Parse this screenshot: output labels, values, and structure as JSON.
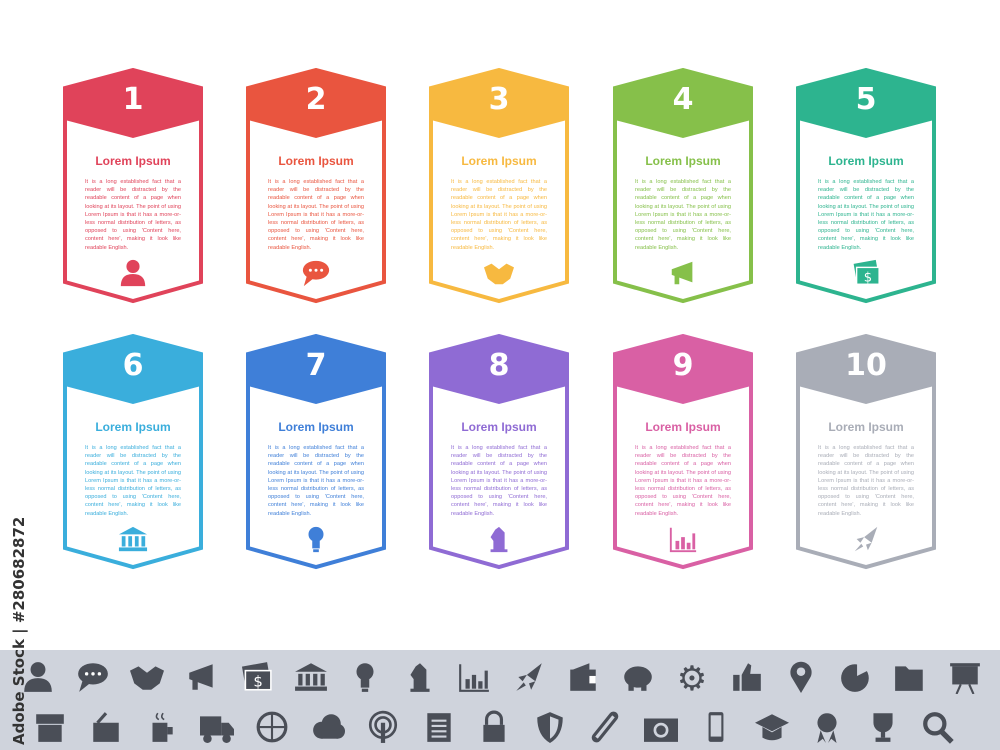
{
  "cards": [
    {
      "number": "1",
      "title": "Lorem Ipsum",
      "color": "#e0435a",
      "icon": "person-icon"
    },
    {
      "number": "2",
      "title": "Lorem Ipsum",
      "color": "#e9553f",
      "icon": "chat-bubble-icon"
    },
    {
      "number": "3",
      "title": "Lorem Ipsum",
      "color": "#f7b940",
      "icon": "handshake-icon"
    },
    {
      "number": "4",
      "title": "Lorem Ipsum",
      "color": "#86c04a",
      "icon": "megaphone-icon"
    },
    {
      "number": "5",
      "title": "Lorem Ipsum",
      "color": "#2db48f",
      "icon": "money-icon"
    },
    {
      "number": "6",
      "title": "Lorem Ipsum",
      "color": "#3aaedc",
      "icon": "bank-icon"
    },
    {
      "number": "7",
      "title": "Lorem Ipsum",
      "color": "#3f7fd8",
      "icon": "lightbulb-icon"
    },
    {
      "number": "8",
      "title": "Lorem Ipsum",
      "color": "#8f6bd4",
      "icon": "chess-knight-icon"
    },
    {
      "number": "9",
      "title": "Lorem Ipsum",
      "color": "#d960a4",
      "icon": "bar-chart-icon"
    },
    {
      "number": "10",
      "title": "Lorem Ipsum",
      "color": "#a9adb7",
      "icon": "rocket-icon"
    }
  ],
  "body_text": "It is a long established fact that a reader will be distracted by the readable content of a page when looking at its layout. The point of using Lorem Ipsum is that it has a more-or-less normal distribution of letters, as opposed to using 'Content here, content here', making it look like readable English.",
  "icon_bar": {
    "color": "#4a4e57",
    "background": "#cfd3dc",
    "row1": [
      "person-icon",
      "chat-bubble-icon",
      "handshake-icon",
      "megaphone-icon",
      "money-icon",
      "bank-icon",
      "lightbulb-icon",
      "chess-knight-icon",
      "bar-chart-icon",
      "rocket-icon",
      "wallet-icon",
      "piggy-bank-icon",
      "gear-icon",
      "thumbs-up-icon",
      "location-pin-icon",
      "pie-chart-icon",
      "folder-icon",
      "presentation-board-icon"
    ],
    "row2": [
      "shop-icon",
      "basket-icon",
      "coffee-icon",
      "truck-icon",
      "globe-icon",
      "cloud-icon",
      "broadcast-icon",
      "document-icon",
      "lock-icon",
      "shield-icon",
      "link-icon",
      "camera-icon",
      "phone-icon",
      "graduation-cap-icon",
      "award-icon",
      "trophy-icon",
      "search-icon"
    ]
  },
  "watermark": "Adobe Stock | #280682872"
}
